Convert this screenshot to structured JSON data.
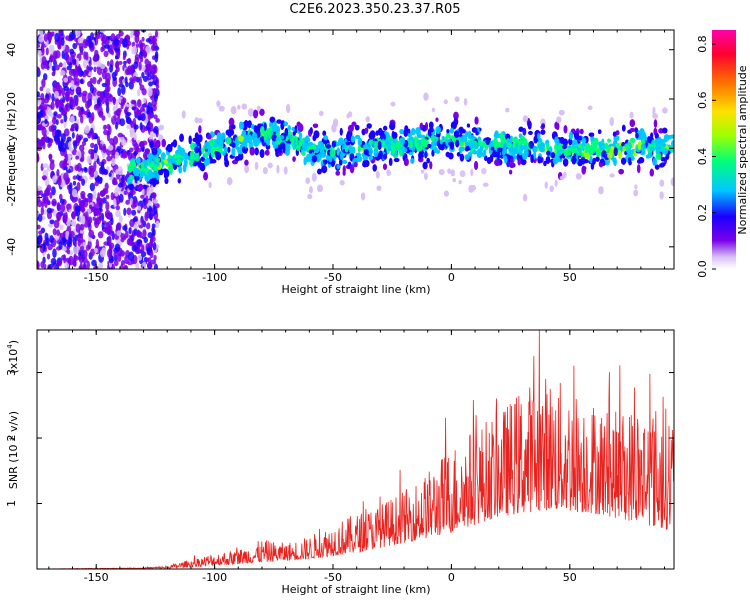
{
  "title": "C2E6.2023.350.23.37.R05",
  "colors": {
    "snr_line": "#e8231f",
    "colormap": [
      "#ffffff",
      "#d8c0f5",
      "#7a00e8",
      "#1a00ff",
      "#00c8ff",
      "#00ff7a",
      "#a0ff00",
      "#ffe000",
      "#ff7000",
      "#ff0030",
      "#ff00aa"
    ]
  },
  "chart_data": [
    {
      "type": "heatmap",
      "title": "",
      "xlabel": "Height of straight line (km)",
      "ylabel": "Frequency (Hz)",
      "xlim": [
        -175,
        94
      ],
      "ylim": [
        -49,
        48
      ],
      "x_ticks": [
        -150,
        -100,
        -50,
        0,
        50
      ],
      "y_ticks": [
        -40,
        -20,
        0,
        20,
        40
      ],
      "colorbar": {
        "label": "Normalized spectral amplitude",
        "range": [
          0.0,
          0.85
        ],
        "ticks": [
          "0.0",
          "0.2",
          "0.4",
          "0.6",
          "0.8"
        ]
      },
      "description_points": {
        "band_center_hz": [
          [
            -135,
            -8
          ],
          [
            -120,
            -6
          ],
          [
            -110,
            -3
          ],
          [
            -100,
            0
          ],
          [
            -90,
            3
          ],
          [
            -80,
            6
          ],
          [
            -70,
            4
          ],
          [
            -60,
            0
          ],
          [
            -50,
            -2
          ],
          [
            -40,
            0
          ],
          [
            -30,
            2
          ],
          [
            -20,
            1
          ],
          [
            -10,
            2
          ],
          [
            0,
            3
          ],
          [
            10,
            2
          ],
          [
            20,
            1
          ],
          [
            30,
            1
          ],
          [
            40,
            0
          ],
          [
            50,
            -1
          ],
          [
            60,
            0
          ],
          [
            70,
            -1
          ],
          [
            80,
            1
          ],
          [
            90,
            0
          ]
        ],
        "noise_region_x": [
          -175,
          -124
        ]
      }
    },
    {
      "type": "line",
      "title": "",
      "xlabel": "Height of straight line (km)",
      "ylabel": "SNR (10 * v/v)",
      "y_multiplier_label": "(x10",
      "y_multiplier_exp": "4",
      "xlim": [
        -175,
        94
      ],
      "ylim": [
        0,
        3.65
      ],
      "x_ticks": [
        -150,
        -100,
        -50,
        0,
        50
      ],
      "y_ticks": [
        1,
        2,
        3
      ],
      "envelope": [
        [
          -175,
          0.0
        ],
        [
          -130,
          0.02
        ],
        [
          -120,
          0.05
        ],
        [
          -110,
          0.15
        ],
        [
          -100,
          0.25
        ],
        [
          -90,
          0.3
        ],
        [
          -80,
          0.45
        ],
        [
          -70,
          0.4
        ],
        [
          -60,
          0.5
        ],
        [
          -50,
          0.7
        ],
        [
          -40,
          0.85
        ],
        [
          -30,
          1.0
        ],
        [
          -20,
          1.2
        ],
        [
          -10,
          1.5
        ],
        [
          0,
          1.9
        ],
        [
          10,
          2.2
        ],
        [
          20,
          2.4
        ],
        [
          30,
          2.8
        ],
        [
          40,
          3.0
        ],
        [
          50,
          2.8
        ],
        [
          60,
          2.6
        ],
        [
          70,
          2.4
        ],
        [
          80,
          2.6
        ],
        [
          90,
          2.5
        ]
      ],
      "baseline": [
        [
          -175,
          0.0
        ],
        [
          -120,
          0.01
        ],
        [
          -100,
          0.05
        ],
        [
          -80,
          0.1
        ],
        [
          -60,
          0.15
        ],
        [
          -40,
          0.25
        ],
        [
          -20,
          0.4
        ],
        [
          0,
          0.55
        ],
        [
          20,
          0.8
        ],
        [
          40,
          0.9
        ],
        [
          60,
          0.85
        ],
        [
          80,
          0.7
        ],
        [
          90,
          0.6
        ]
      ]
    }
  ]
}
